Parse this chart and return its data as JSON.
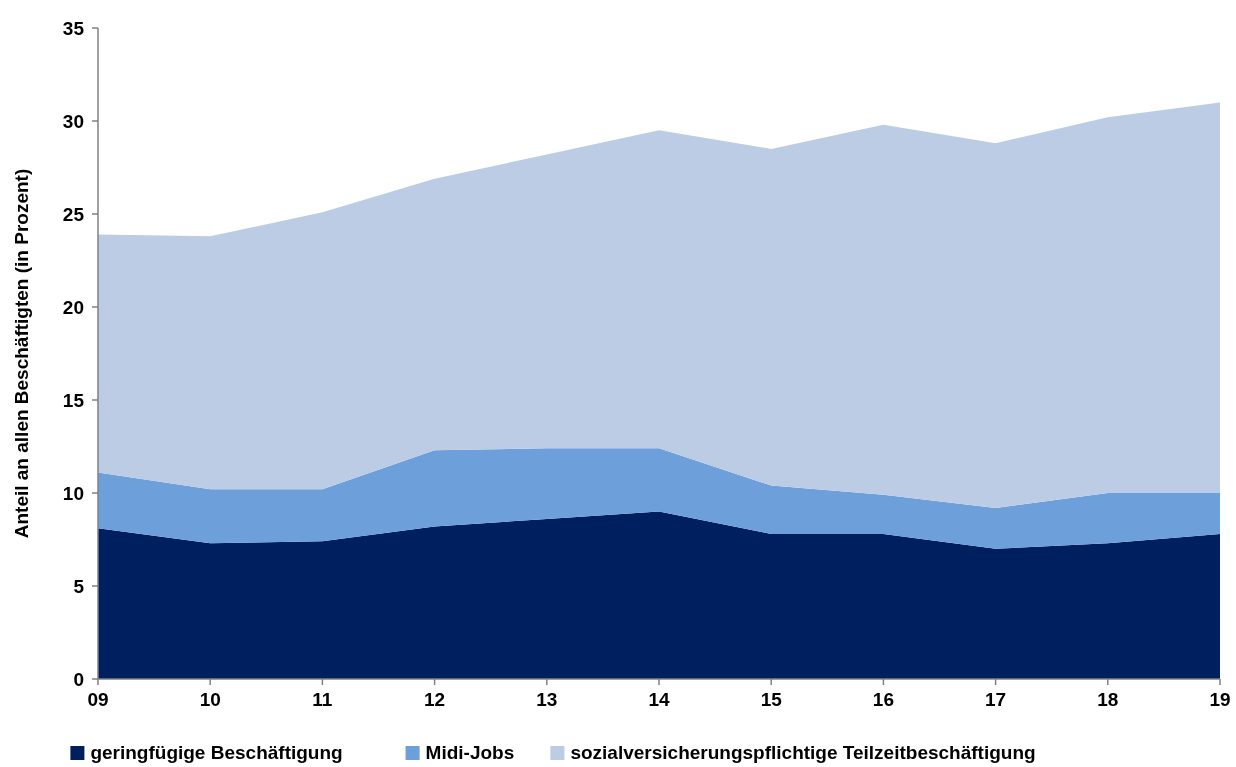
{
  "chart_data": {
    "type": "area",
    "stacked": true,
    "ylabel": "Anteil an allen Beschäftigten (in Prozent)",
    "categories": [
      "09",
      "10",
      "11",
      "12",
      "13",
      "14",
      "15",
      "16",
      "17",
      "18",
      "19"
    ],
    "series": [
      {
        "name": "geringfügige Beschäftigung",
        "color": "#001f5f",
        "values": [
          8.1,
          7.3,
          7.4,
          8.2,
          8.6,
          9.0,
          7.8,
          7.8,
          7.0,
          7.3,
          7.8
        ]
      },
      {
        "name": "Midi-Jobs",
        "color": "#6d9fdb",
        "values": [
          3.0,
          2.9,
          2.8,
          4.1,
          3.8,
          3.4,
          2.6,
          2.1,
          2.2,
          2.7,
          2.2
        ]
      },
      {
        "name": "sozialversicherungspflichtige Teilzeitbeschäftigung",
        "color": "#bbcce4",
        "values": [
          12.8,
          13.6,
          14.9,
          14.6,
          15.8,
          17.1,
          18.1,
          19.9,
          19.6,
          20.2,
          21.0
        ]
      }
    ],
    "ylim": [
      0,
      35
    ],
    "yticks": [
      0,
      5,
      10,
      15,
      20,
      25,
      30,
      35
    ],
    "legend": "bottom"
  }
}
